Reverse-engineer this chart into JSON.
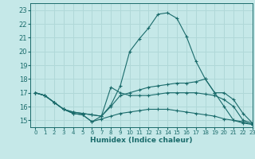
{
  "xlabel": "Humidex (Indice chaleur)",
  "xlim": [
    -0.5,
    23
  ],
  "ylim": [
    14.5,
    23.5
  ],
  "yticks": [
    15,
    16,
    17,
    18,
    19,
    20,
    21,
    22,
    23
  ],
  "xticks": [
    0,
    1,
    2,
    3,
    4,
    5,
    6,
    7,
    8,
    9,
    10,
    11,
    12,
    13,
    14,
    15,
    16,
    17,
    18,
    19,
    20,
    21,
    22,
    23
  ],
  "bg_color": "#c5e8e8",
  "grid_color": "#b0d8d8",
  "line_color": "#1a6b6b",
  "lines": [
    {
      "x": [
        0,
        1,
        2,
        3,
        4,
        5,
        6,
        7,
        8,
        9,
        10,
        11,
        12,
        13,
        14,
        15,
        16,
        17,
        18,
        19,
        20,
        21,
        22,
        23
      ],
      "y": [
        17.0,
        16.8,
        16.3,
        15.8,
        15.6,
        15.5,
        15.4,
        15.3,
        16.1,
        17.5,
        20.0,
        20.9,
        21.7,
        22.7,
        22.8,
        22.4,
        21.1,
        19.3,
        18.0,
        17.0,
        16.0,
        15.0,
        14.8,
        14.7
      ]
    },
    {
      "x": [
        0,
        1,
        2,
        3,
        4,
        5,
        6,
        7,
        8,
        9,
        10,
        11,
        12,
        13,
        14,
        15,
        16,
        17,
        18,
        19,
        20,
        21,
        22,
        23
      ],
      "y": [
        17.0,
        16.8,
        16.3,
        15.8,
        15.6,
        15.5,
        15.4,
        15.3,
        16.0,
        16.8,
        17.0,
        17.2,
        17.4,
        17.5,
        17.6,
        17.7,
        17.7,
        17.8,
        18.0,
        17.0,
        17.0,
        16.5,
        15.5,
        14.8
      ]
    },
    {
      "x": [
        0,
        1,
        2,
        3,
        4,
        5,
        6,
        7,
        8,
        9,
        10,
        11,
        12,
        13,
        14,
        15,
        16,
        17,
        18,
        19,
        20,
        21,
        22,
        23
      ],
      "y": [
        17.0,
        16.8,
        16.3,
        15.8,
        15.5,
        15.4,
        14.9,
        15.3,
        17.4,
        17.0,
        16.8,
        16.8,
        16.8,
        16.9,
        17.0,
        17.0,
        17.0,
        17.0,
        16.9,
        16.8,
        16.5,
        16.0,
        15.0,
        14.8
      ]
    },
    {
      "x": [
        0,
        1,
        2,
        3,
        4,
        5,
        6,
        7,
        8,
        9,
        10,
        11,
        12,
        13,
        14,
        15,
        16,
        17,
        18,
        19,
        20,
        21,
        22,
        23
      ],
      "y": [
        17.0,
        16.8,
        16.3,
        15.8,
        15.5,
        15.4,
        14.9,
        15.1,
        15.3,
        15.5,
        15.6,
        15.7,
        15.8,
        15.8,
        15.8,
        15.7,
        15.6,
        15.5,
        15.4,
        15.3,
        15.1,
        15.0,
        14.9,
        14.7
      ]
    }
  ]
}
